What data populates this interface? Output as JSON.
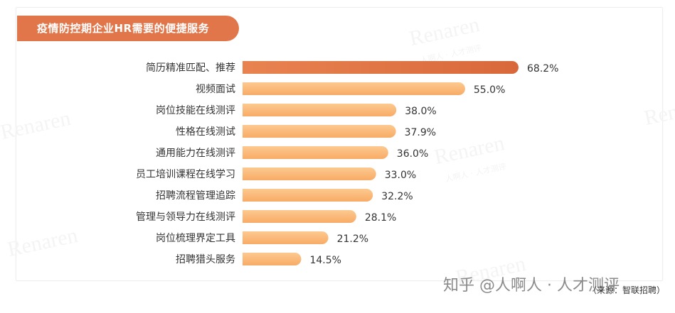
{
  "title": "疫情防控期企业HR需要的便捷服务",
  "watermark": {
    "text": "Renaren",
    "sub": "人啊人 · 人才测评"
  },
  "footer": {
    "brand": "知乎 @人啊人 · 人才测评",
    "source": "（来源：智联招聘）"
  },
  "colors": {
    "title_bg": "#e0764a",
    "top_bar": "#de6f3f",
    "bar_light": "#fbbd7e",
    "bar_dark": "#f7a45e"
  },
  "chart_data": {
    "type": "bar",
    "orientation": "horizontal",
    "categories": [
      "简历精准匹配、推荐",
      "视频面试",
      "岗位技能在线测评",
      "性格在线测试",
      "通用能力在线测评",
      "员工培训课程在线学习",
      "招聘流程管理追踪",
      "管理与领导力在线测评",
      "岗位梳理界定工具",
      "招聘猎头服务"
    ],
    "values": [
      68.2,
      55.0,
      38.0,
      37.9,
      36.0,
      33.0,
      32.2,
      28.1,
      21.2,
      14.5
    ],
    "labels": [
      "68.2%",
      "55.0%",
      "38.0%",
      "37.9%",
      "36.0%",
      "33.0%",
      "32.2%",
      "28.1%",
      "21.2%",
      "14.5%"
    ],
    "title": "疫情防控期企业HR需要的便捷服务",
    "xlabel": "",
    "ylabel": "",
    "xlim": [
      0,
      68.2
    ],
    "grid": false,
    "legend": "none"
  }
}
